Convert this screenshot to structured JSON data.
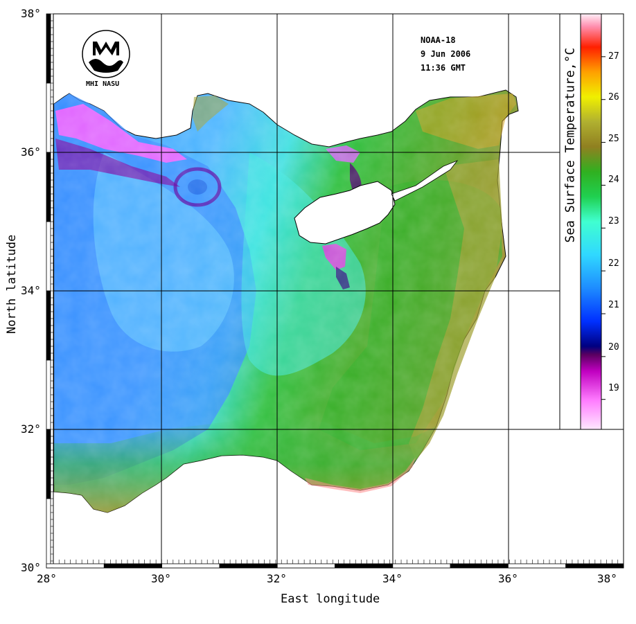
{
  "header": {
    "satellite": "NOAA-18",
    "date": "9 Jun 2006",
    "time": "11:36 GMT"
  },
  "logo": {
    "text": "MHI NASU"
  },
  "axes": {
    "xlabel": "East longitude",
    "ylabel": "North latitude",
    "x_ticks": [
      "28°",
      "30°",
      "32°",
      "34°",
      "36°",
      "38°"
    ],
    "y_ticks": [
      "38°",
      "36°",
      "34°",
      "32°",
      "30°"
    ]
  },
  "colorbar": {
    "title": "Sea Surface Temperature,°C",
    "ticks": [
      "27",
      "26",
      "25",
      "24",
      "23",
      "22",
      "21",
      "20",
      "19"
    ],
    "range": [
      18.3,
      28.0
    ]
  },
  "colors": {
    "land": "#ffffff",
    "grid": "#000000"
  }
}
